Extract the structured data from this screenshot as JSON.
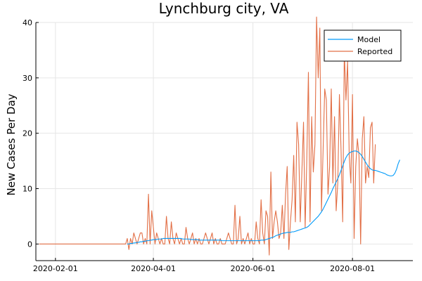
{
  "chart_data": {
    "type": "line",
    "title": "Lynchburg city, VA",
    "xlabel": "",
    "ylabel": "New Cases Per Day",
    "x_ticks": [
      "2020-02-01",
      "2020-04-01",
      "2020-06-01",
      "2020-08-01"
    ],
    "y_ticks": [
      0,
      10,
      20,
      30,
      40
    ],
    "xlim": [
      "2020-01-20",
      "2020-09-07"
    ],
    "ylim": [
      -3,
      40
    ],
    "grid": true,
    "legend": "top-right",
    "colors": {
      "Model": "#009af9",
      "Reported": "#e26f46"
    },
    "series": [
      {
        "name": "Model",
        "x_start": "2020-03-16",
        "values": [
          0.0,
          0.0,
          0.1,
          0.1,
          0.2,
          0.2,
          0.3,
          0.3,
          0.4,
          0.4,
          0.5,
          0.5,
          0.6,
          0.6,
          0.7,
          0.7,
          0.8,
          0.8,
          0.8,
          0.9,
          0.9,
          0.9,
          1.0,
          1.0,
          1.0,
          1.0,
          1.0,
          1.0,
          1.0,
          1.0,
          1.0,
          1.0,
          1.0,
          1.0,
          0.9,
          0.9,
          0.9,
          0.9,
          0.9,
          0.8,
          0.8,
          0.8,
          0.8,
          0.8,
          0.7,
          0.7,
          0.7,
          0.7,
          0.7,
          0.7,
          0.7,
          0.7,
          0.7,
          0.7,
          0.7,
          0.7,
          0.7,
          0.7,
          0.6,
          0.6,
          0.6,
          0.6,
          0.6,
          0.6,
          0.6,
          0.6,
          0.6,
          0.6,
          0.6,
          0.6,
          0.6,
          0.6,
          0.6,
          0.6,
          0.6,
          0.6,
          0.6,
          0.6,
          0.6,
          0.6,
          0.6,
          0.6,
          0.7,
          0.7,
          0.7,
          0.8,
          0.9,
          1.0,
          1.1,
          1.2,
          1.3,
          1.5,
          1.6,
          1.7,
          1.8,
          1.9,
          2.0,
          2.0,
          2.1,
          2.1,
          2.1,
          2.2,
          2.2,
          2.3,
          2.4,
          2.5,
          2.6,
          2.7,
          2.8,
          2.9,
          3.0,
          3.2,
          3.5,
          3.8,
          4.1,
          4.4,
          4.7,
          5.0,
          5.4,
          5.8,
          6.3,
          6.9,
          7.5,
          8.1,
          8.7,
          9.3,
          10.0,
          10.6,
          11.2,
          11.8,
          12.5,
          13.3,
          14.1,
          14.9,
          15.6,
          16.1,
          16.4,
          16.6,
          16.7,
          16.8,
          16.8,
          16.7,
          16.5,
          16.2,
          15.8,
          15.3,
          14.8,
          14.3,
          13.9,
          13.6,
          13.4,
          13.3,
          13.3,
          13.2,
          13.1,
          13.0,
          12.9,
          12.8,
          12.7,
          12.5,
          12.4,
          12.3,
          12.3,
          12.4,
          12.8,
          13.5,
          14.5,
          15.2
        ]
      },
      {
        "name": "Reported",
        "x_start": "2020-01-22",
        "pre_zero_days": 54,
        "values": [
          1,
          -1,
          1,
          0,
          2,
          1,
          0,
          1,
          2,
          2,
          0,
          1,
          0,
          9,
          0,
          6,
          3,
          0,
          2,
          1,
          0,
          1,
          0,
          0,
          5,
          1,
          0,
          4,
          1,
          0,
          2,
          1,
          0,
          1,
          0,
          0,
          3,
          1,
          0,
          1,
          2,
          0,
          1,
          0,
          1,
          0,
          0,
          1,
          2,
          1,
          0,
          1,
          2,
          0,
          1,
          0,
          0,
          1,
          0,
          0,
          0,
          1,
          2,
          1,
          0,
          0,
          7,
          0,
          1,
          5,
          0,
          1,
          0,
          1,
          2,
          0,
          1,
          0,
          0,
          4,
          1,
          0,
          8,
          2,
          0,
          6,
          5,
          -2,
          13,
          1,
          4,
          6,
          4,
          1,
          2,
          7,
          1,
          9,
          14,
          -1,
          4,
          8,
          16,
          4,
          22,
          18,
          4,
          13,
          22,
          3,
          15,
          31,
          4,
          23,
          13,
          18,
          41,
          30,
          39,
          6,
          17,
          28,
          26,
          9,
          14,
          28,
          11,
          23,
          6,
          11,
          27,
          17,
          4,
          35,
          26,
          33,
          16,
          11,
          27,
          1,
          14,
          19,
          16,
          0,
          19,
          23,
          11,
          14,
          12,
          21,
          22,
          11,
          18
        ]
      }
    ]
  }
}
